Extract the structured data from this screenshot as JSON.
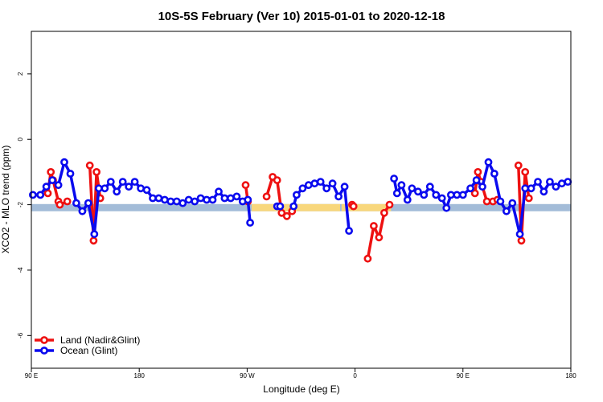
{
  "chart_data": {
    "type": "line",
    "title": "10S-5S February (Ver 10)   2015-01-01 to 2020-12-18",
    "xlabel": "Longitude (deg E)",
    "ylabel": "XCO2 - MLO trend (ppm)",
    "xlim": [
      90,
      450
    ],
    "ylim": [
      -7,
      3.3
    ],
    "x_ticks": [
      {
        "value": 90,
        "label": "90 E"
      },
      {
        "value": 162,
        "label": "180"
      },
      {
        "value": 234,
        "label": "90 W"
      },
      {
        "value": 306,
        "label": "0"
      },
      {
        "value": 378,
        "label": "90 E"
      },
      {
        "value": 450,
        "label": "180"
      }
    ],
    "y_ticks": [
      {
        "value": 2,
        "label": "2"
      },
      {
        "value": 0,
        "label": "0"
      },
      {
        "value": -2,
        "label": "-2"
      },
      {
        "value": -4,
        "label": "-4"
      },
      {
        "value": -6,
        "label": "-6"
      }
    ],
    "band": {
      "y_low": -2.2,
      "y_high": -1.98,
      "ocean_color": "#a3bcd8",
      "land_color": "#f8d77c",
      "land_ranges": [
        [
          237,
          296
        ],
        [
          297,
          330
        ]
      ]
    },
    "series": [
      {
        "name": "Land (Nadir&Glint)",
        "color": "#ee1111",
        "segments": [
          [
            [
              101,
              -1.65
            ],
            [
              103,
              -1.0
            ],
            [
              104.5,
              -1.25
            ],
            [
              108,
              -1.9
            ]
          ],
          [
            [
              109,
              -2.0
            ],
            [
              114,
              -1.9
            ]
          ],
          [
            [
              129,
              -0.8
            ],
            [
              131.5,
              -3.1
            ],
            [
              133.5,
              -1.0
            ],
            [
              136,
              -1.8
            ]
          ],
          [
            [
              233,
              -1.4
            ],
            [
              234.5,
              -1.9
            ]
          ],
          [
            [
              247,
              -1.75
            ],
            [
              251,
              -1.15
            ],
            [
              254,
              -1.25
            ],
            [
              257,
              -2.25
            ],
            [
              260.5,
              -2.35
            ],
            [
              264,
              -2.2
            ]
          ],
          [
            [
              304,
              -2.0
            ],
            [
              305,
              -2.05
            ]
          ],
          [
            [
              314.5,
              -3.65
            ],
            [
              318.5,
              -2.65
            ],
            [
              322,
              -3.0
            ],
            [
              325.5,
              -2.25
            ],
            [
              329,
              -2.0
            ]
          ],
          [
            [
              386,
              -1.65
            ],
            [
              388,
              -1.0
            ],
            [
              390,
              -1.3
            ],
            [
              394,
              -1.9
            ]
          ],
          [
            [
              398,
              -1.9
            ],
            [
              401,
              -1.85
            ]
          ],
          [
            [
              415,
              -0.8
            ],
            [
              417,
              -3.1
            ],
            [
              419.5,
              -1.0
            ],
            [
              422,
              -1.8
            ]
          ]
        ]
      },
      {
        "name": "Ocean (Glint)",
        "color": "#0a0aee",
        "segments": [
          [
            [
              91,
              -1.7
            ],
            [
              96,
              -1.7
            ],
            [
              100,
              -1.45
            ],
            [
              104,
              -1.25
            ],
            [
              108,
              -1.4
            ],
            [
              112,
              -0.7
            ],
            [
              116,
              -1.05
            ],
            [
              120,
              -1.95
            ],
            [
              124,
              -2.2
            ],
            [
              128,
              -1.95
            ],
            [
              132,
              -2.9
            ],
            [
              135,
              -1.5
            ],
            [
              139,
              -1.5
            ],
            [
              143,
              -1.3
            ],
            [
              147,
              -1.6
            ],
            [
              151,
              -1.3
            ],
            [
              155,
              -1.45
            ],
            [
              159,
              -1.3
            ],
            [
              163,
              -1.5
            ],
            [
              167,
              -1.55
            ],
            [
              171,
              -1.8
            ],
            [
              175,
              -1.8
            ],
            [
              179,
              -1.85
            ],
            [
              183,
              -1.9
            ],
            [
              187,
              -1.9
            ],
            [
              191,
              -1.95
            ],
            [
              195,
              -1.85
            ],
            [
              199,
              -1.9
            ],
            [
              203,
              -1.8
            ],
            [
              207,
              -1.85
            ],
            [
              211,
              -1.85
            ],
            [
              215,
              -1.6
            ],
            [
              219,
              -1.8
            ],
            [
              223,
              -1.8
            ],
            [
              227,
              -1.75
            ],
            [
              231,
              -1.9
            ],
            [
              234.5,
              -1.85
            ],
            [
              236,
              -2.55
            ]
          ],
          [
            [
              254,
              -2.05
            ],
            [
              256,
              -2.05
            ]
          ],
          [
            [
              265,
              -2.05
            ],
            [
              267,
              -1.7
            ],
            [
              271,
              -1.5
            ],
            [
              275,
              -1.4
            ],
            [
              279,
              -1.35
            ],
            [
              283,
              -1.3
            ],
            [
              287,
              -1.5
            ],
            [
              291,
              -1.35
            ],
            [
              295,
              -1.75
            ],
            [
              299,
              -1.45
            ],
            [
              302,
              -2.8
            ]
          ],
          [
            [
              332,
              -1.2
            ],
            [
              334,
              -1.65
            ],
            [
              337,
              -1.4
            ],
            [
              341,
              -1.85
            ],
            [
              344,
              -1.5
            ],
            [
              348,
              -1.6
            ],
            [
              352,
              -1.7
            ],
            [
              356,
              -1.45
            ],
            [
              360,
              -1.7
            ],
            [
              364,
              -1.8
            ],
            [
              367,
              -2.1
            ],
            [
              370,
              -1.7
            ],
            [
              374,
              -1.7
            ],
            [
              378,
              -1.7
            ],
            [
              383,
              -1.5
            ],
            [
              387,
              -1.25
            ],
            [
              391,
              -1.45
            ],
            [
              395,
              -0.7
            ],
            [
              399,
              -1.05
            ],
            [
              403,
              -1.9
            ],
            [
              407,
              -2.2
            ],
            [
              411,
              -1.95
            ],
            [
              416,
              -2.9
            ],
            [
              419.5,
              -1.5
            ],
            [
              423.5,
              -1.5
            ],
            [
              428,
              -1.3
            ],
            [
              432,
              -1.6
            ],
            [
              436,
              -1.3
            ],
            [
              440,
              -1.45
            ],
            [
              444,
              -1.35
            ],
            [
              448,
              -1.3
            ]
          ]
        ]
      }
    ]
  }
}
